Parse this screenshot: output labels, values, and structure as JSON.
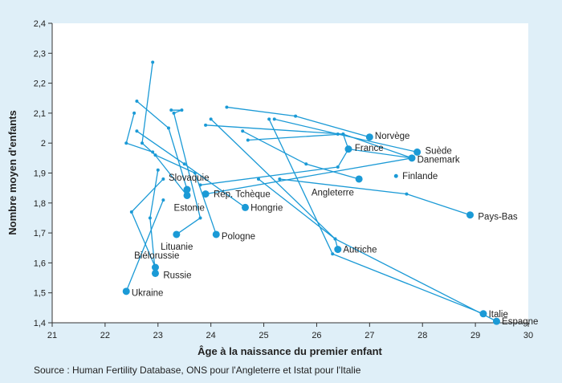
{
  "source_note": "Source : Human Fertility Database, ONS pour l'Angleterre et Istat pour l'Italie",
  "colors": {
    "background": "#dfeff8",
    "plot_background": "#ffffff",
    "series": "#1b9ad6",
    "text": "#222222",
    "axis": "#333333"
  },
  "chart_data": {
    "type": "scatter",
    "xlabel": "Âge à la naissance du premier enfant",
    "ylabel": "Nombre moyen d'enfants",
    "xlim": [
      21,
      30
    ],
    "ylim": [
      1.4,
      2.4
    ],
    "xticks": [
      "21",
      "22",
      "23",
      "24",
      "25",
      "26",
      "27",
      "28",
      "29",
      "30"
    ],
    "yticks": [
      "1,4",
      "1,5",
      "1,6",
      "1,7",
      "1,8",
      "1,9",
      "2",
      "2,1",
      "2,2",
      "2,3",
      "2,4"
    ],
    "grid": false,
    "series": [
      {
        "name": "Norvège",
        "path": [
          [
            24.3,
            2.12
          ],
          [
            25.6,
            2.09
          ],
          [
            27.0,
            2.02
          ]
        ]
      },
      {
        "name": "France",
        "path": [
          [
            23.9,
            2.06
          ],
          [
            26.5,
            2.03
          ],
          [
            26.6,
            1.98
          ]
        ]
      },
      {
        "name": "Suède",
        "path": [
          [
            25.2,
            2.08
          ],
          [
            26.4,
            2.03
          ],
          [
            27.9,
            1.97
          ]
        ]
      },
      {
        "name": "Danemark",
        "path": [
          [
            24.7,
            2.01
          ],
          [
            26.5,
            2.03
          ],
          [
            27.8,
            1.95
          ]
        ]
      },
      {
        "name": "Finlande",
        "path": [
          [
            27.5,
            1.89
          ]
        ]
      },
      {
        "name": "Angleterre",
        "path": [
          [
            24.6,
            2.04
          ],
          [
            25.8,
            1.93
          ],
          [
            26.8,
            1.88
          ]
        ]
      },
      {
        "name": "Pays-Bas",
        "path": [
          [
            25.3,
            1.88
          ],
          [
            27.7,
            1.83
          ],
          [
            28.9,
            1.76
          ]
        ]
      },
      {
        "name": "Rép. Tchèque",
        "path": [
          [
            23.8,
            1.86
          ],
          [
            26.4,
            1.92
          ],
          [
            26.6,
            1.98
          ],
          [
            27.8,
            1.95
          ],
          [
            23.9,
            1.83
          ]
        ]
      },
      {
        "name": "Hongrie",
        "path": [
          [
            22.6,
            2.04
          ],
          [
            23.5,
            1.93
          ],
          [
            24.65,
            1.785
          ]
        ]
      },
      {
        "name": "Slovaquie",
        "path": [
          [
            22.6,
            2.14
          ],
          [
            23.2,
            2.05
          ],
          [
            23.55,
            1.845
          ]
        ]
      },
      {
        "name": "Estonie",
        "path": [
          [
            22.55,
            2.1
          ],
          [
            22.4,
            2.0
          ],
          [
            22.9,
            1.97
          ],
          [
            23.55,
            1.825
          ]
        ]
      },
      {
        "name": "Pologne",
        "path": [
          [
            22.9,
            2.27
          ],
          [
            22.7,
            2.0
          ],
          [
            22.95,
            1.96
          ],
          [
            23.7,
            1.9
          ],
          [
            24.1,
            1.695
          ]
        ]
      },
      {
        "name": "Lituanie",
        "path": [
          [
            23.25,
            2.11
          ],
          [
            23.45,
            2.11
          ],
          [
            23.3,
            2.1
          ],
          [
            23.8,
            1.75
          ],
          [
            23.35,
            1.695
          ]
        ]
      },
      {
        "name": "Biélorussie",
        "path": [
          [
            23.1,
            1.88
          ],
          [
            22.5,
            1.77
          ],
          [
            22.95,
            1.585
          ]
        ]
      },
      {
        "name": "Russie",
        "path": [
          [
            23.0,
            1.91
          ],
          [
            22.85,
            1.75
          ],
          [
            22.95,
            1.565
          ]
        ]
      },
      {
        "name": "Ukraine",
        "path": [
          [
            23.1,
            1.81
          ],
          [
            22.4,
            1.505
          ]
        ]
      },
      {
        "name": "Autriche",
        "path": [
          [
            24.9,
            1.88
          ],
          [
            26.35,
            1.68
          ],
          [
            26.4,
            1.645
          ]
        ]
      },
      {
        "name": "Italie",
        "path": [
          [
            25.1,
            2.08
          ],
          [
            26.3,
            1.63
          ],
          [
            29.15,
            1.43
          ]
        ]
      },
      {
        "name": "Espagne",
        "path": [
          [
            24.0,
            2.08
          ],
          [
            26.35,
            1.68
          ],
          [
            29.4,
            1.405
          ]
        ]
      }
    ],
    "labels": [
      {
        "text": "Norvège",
        "x": 27.1,
        "y": 2.025,
        "anchor": "start"
      },
      {
        "text": "France",
        "x": 26.72,
        "y": 1.985,
        "anchor": "start"
      },
      {
        "text": "Suède",
        "x": 28.05,
        "y": 1.975,
        "anchor": "start"
      },
      {
        "text": "Danemark",
        "x": 27.9,
        "y": 1.945,
        "anchor": "start"
      },
      {
        "text": "Finlande",
        "x": 27.62,
        "y": 1.89,
        "anchor": "start"
      },
      {
        "text": "Angleterre",
        "x": 25.9,
        "y": 1.835,
        "anchor": "start"
      },
      {
        "text": "Pays-Bas",
        "x": 29.05,
        "y": 1.755,
        "anchor": "start"
      },
      {
        "text": "Rép. Tchèque",
        "x": 24.05,
        "y": 1.83,
        "anchor": "start"
      },
      {
        "text": "Hongrie",
        "x": 24.75,
        "y": 1.785,
        "anchor": "start"
      },
      {
        "text": "Slovaquie",
        "x": 23.2,
        "y": 1.885,
        "anchor": "start"
      },
      {
        "text": "Estonie",
        "x": 23.3,
        "y": 1.785,
        "anchor": "start"
      },
      {
        "text": "Pologne",
        "x": 24.2,
        "y": 1.69,
        "anchor": "start"
      },
      {
        "text": "Lituanie",
        "x": 23.05,
        "y": 1.655,
        "anchor": "start"
      },
      {
        "text": "Biélorussie",
        "x": 22.55,
        "y": 1.625,
        "anchor": "start"
      },
      {
        "text": "Russie",
        "x": 23.1,
        "y": 1.56,
        "anchor": "start"
      },
      {
        "text": "Ukraine",
        "x": 22.5,
        "y": 1.5,
        "anchor": "start"
      },
      {
        "text": "Autriche",
        "x": 26.5,
        "y": 1.645,
        "anchor": "start"
      },
      {
        "text": "Italie",
        "x": 29.25,
        "y": 1.43,
        "anchor": "start"
      },
      {
        "text": "Espagne",
        "x": 29.5,
        "y": 1.405,
        "anchor": "start"
      }
    ]
  }
}
